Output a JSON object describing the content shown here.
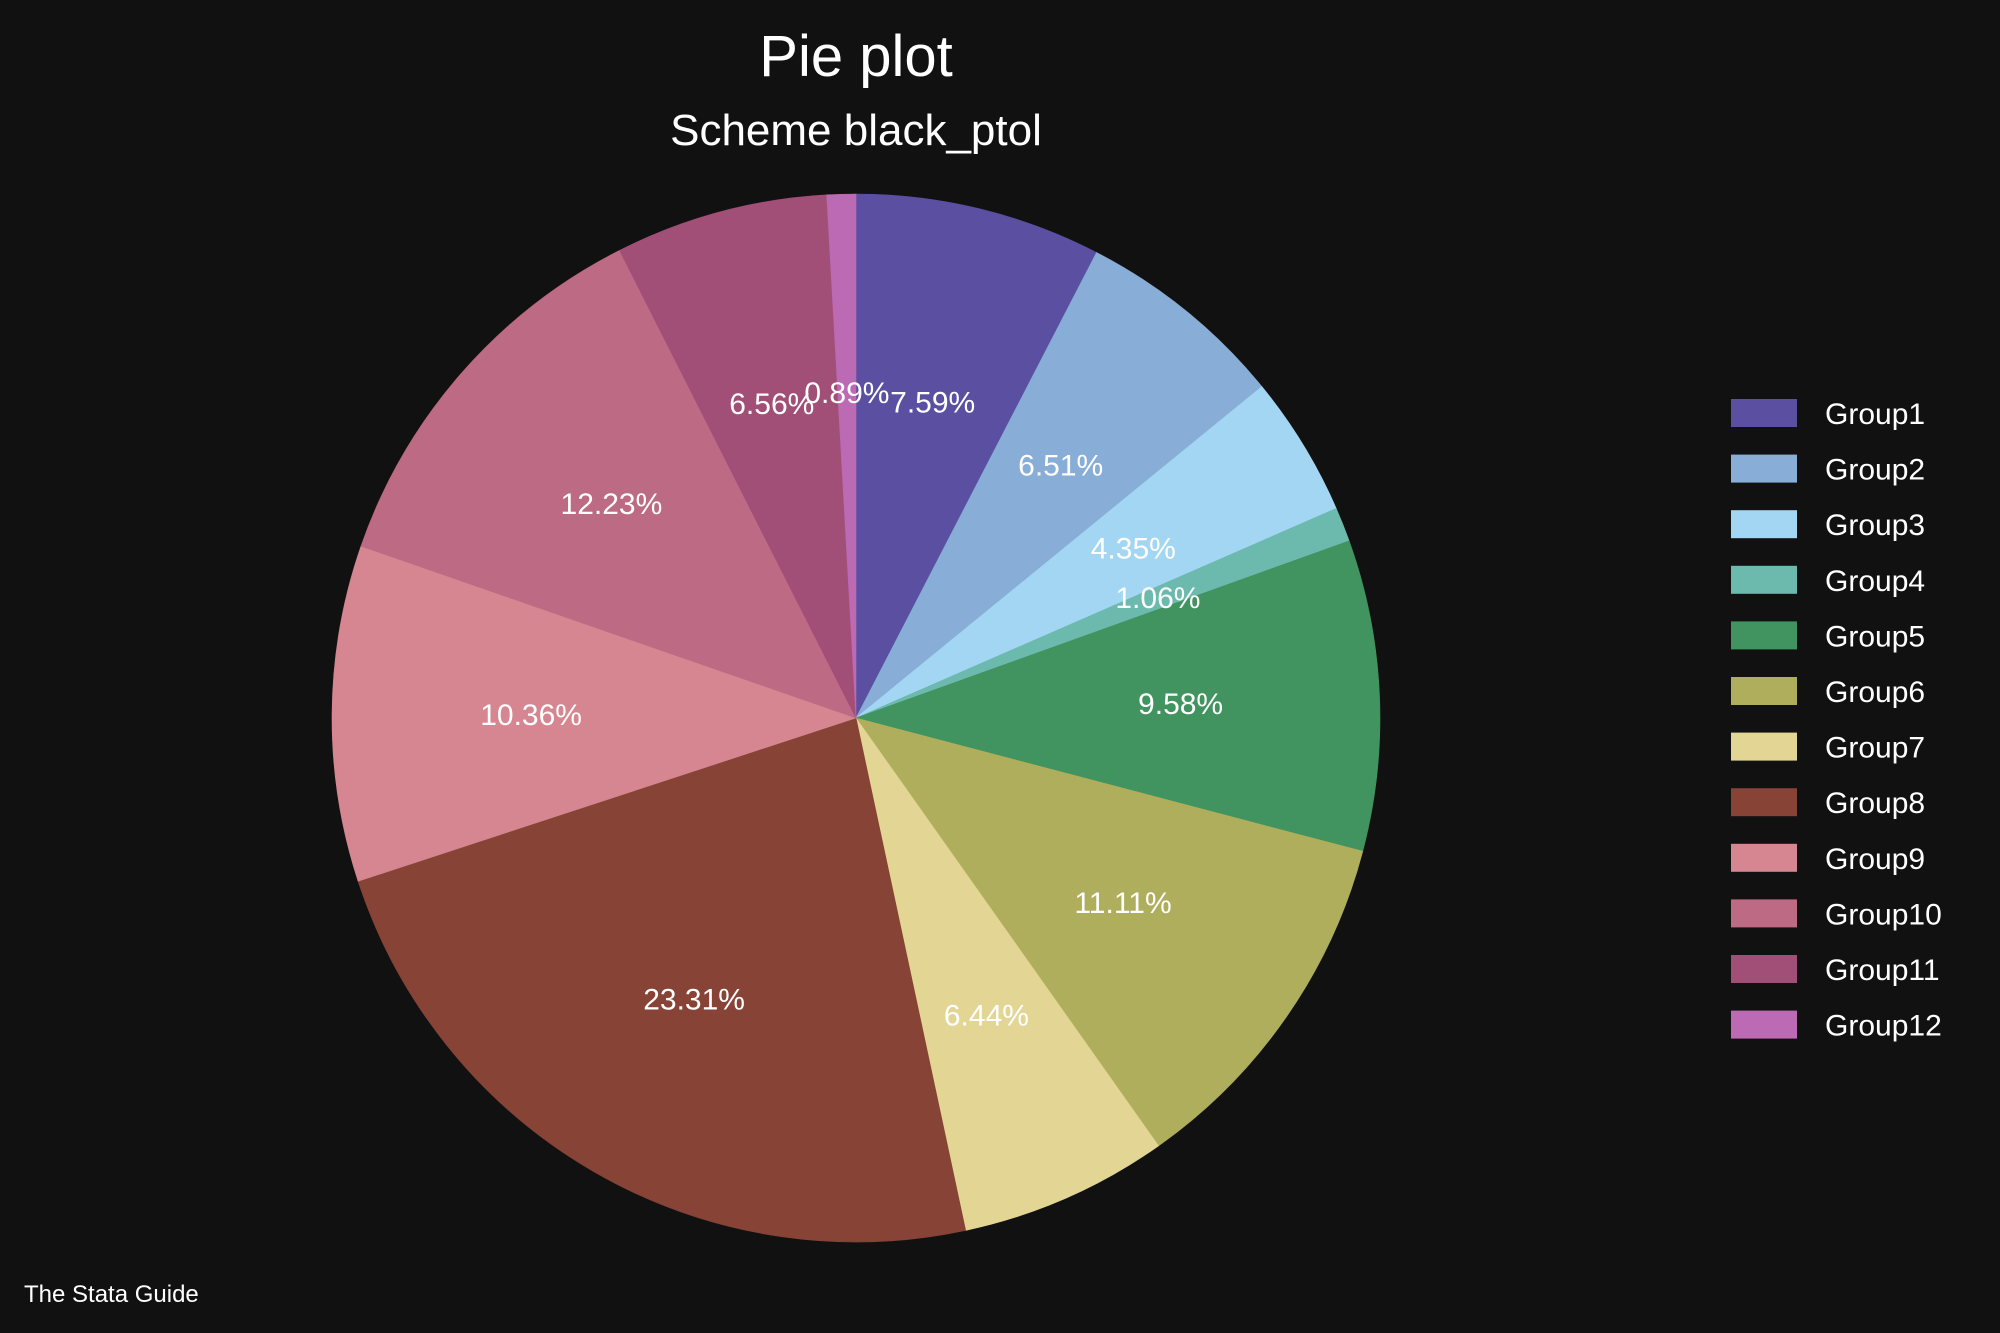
{
  "chart_data": {
    "type": "pie",
    "title": "Pie plot",
    "subtitle": "Scheme black_ptol",
    "note": "The Stata Guide",
    "legend_position": "right",
    "background_color": "#111111",
    "slices": [
      {
        "name": "Group1",
        "value": 7.59,
        "label": "7.59%",
        "color": "#5B4FA2"
      },
      {
        "name": "Group2",
        "value": 6.51,
        "label": "6.51%",
        "color": "#88ADD6"
      },
      {
        "name": "Group3",
        "value": 4.35,
        "label": "4.35%",
        "color": "#A3D6F2"
      },
      {
        "name": "Group4",
        "value": 1.06,
        "label": "1.06%",
        "color": "#6CB9AE"
      },
      {
        "name": "Group5",
        "value": 9.58,
        "label": "9.58%",
        "color": "#41945F"
      },
      {
        "name": "Group6",
        "value": 11.11,
        "label": "11.11%",
        "color": "#AFAE5C"
      },
      {
        "name": "Group7",
        "value": 6.44,
        "label": "6.44%",
        "color": "#E3D594"
      },
      {
        "name": "Group8",
        "value": 23.31,
        "label": "23.31%",
        "color": "#864336"
      },
      {
        "name": "Group9",
        "value": 10.36,
        "label": "10.36%",
        "color": "#D68690"
      },
      {
        "name": "Group10",
        "value": 12.23,
        "label": "12.23%",
        "color": "#BD6A84"
      },
      {
        "name": "Group11",
        "value": 6.56,
        "label": "6.56%",
        "color": "#A24F78"
      },
      {
        "name": "Group12",
        "value": 0.89,
        "label": "0.89%",
        "color": "#BB6AB3"
      }
    ]
  }
}
